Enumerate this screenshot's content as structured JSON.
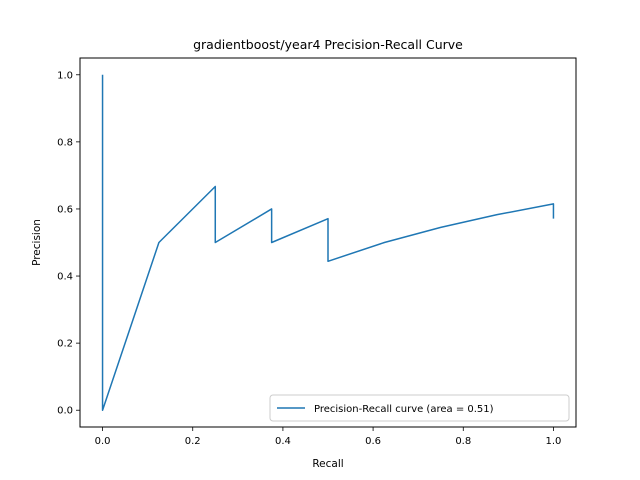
{
  "chart_data": {
    "type": "line",
    "title": "gradientboost/year4 Precision-Recall Curve",
    "xlabel": "Recall",
    "ylabel": "Precision",
    "xlim": [
      -0.05,
      1.05
    ],
    "ylim": [
      -0.05,
      1.05
    ],
    "xticks": [
      0.0,
      0.2,
      0.4,
      0.6,
      0.8,
      1.0
    ],
    "xtick_labels": [
      "0.0",
      "0.2",
      "0.4",
      "0.6",
      "0.8",
      "1.0"
    ],
    "yticks": [
      0.0,
      0.2,
      0.4,
      0.6,
      0.8,
      1.0
    ],
    "ytick_labels": [
      "0.0",
      "0.2",
      "0.4",
      "0.6",
      "0.8",
      "1.0"
    ],
    "grid": false,
    "legend_position": "lower-right",
    "series": [
      {
        "name": "Precision-Recall curve (area = 0.51)",
        "color": "#1f77b4",
        "x": [
          0.0,
          0.0,
          0.0,
          0.125,
          0.25,
          0.25,
          0.375,
          0.375,
          0.5,
          0.5,
          0.625,
          0.75,
          0.875,
          1.0,
          1.0
        ],
        "y": [
          1.0,
          0.0,
          0.0,
          0.5,
          0.667,
          0.5,
          0.6,
          0.5,
          0.571,
          0.444,
          0.5,
          0.545,
          0.583,
          0.615,
          0.571
        ]
      }
    ]
  }
}
